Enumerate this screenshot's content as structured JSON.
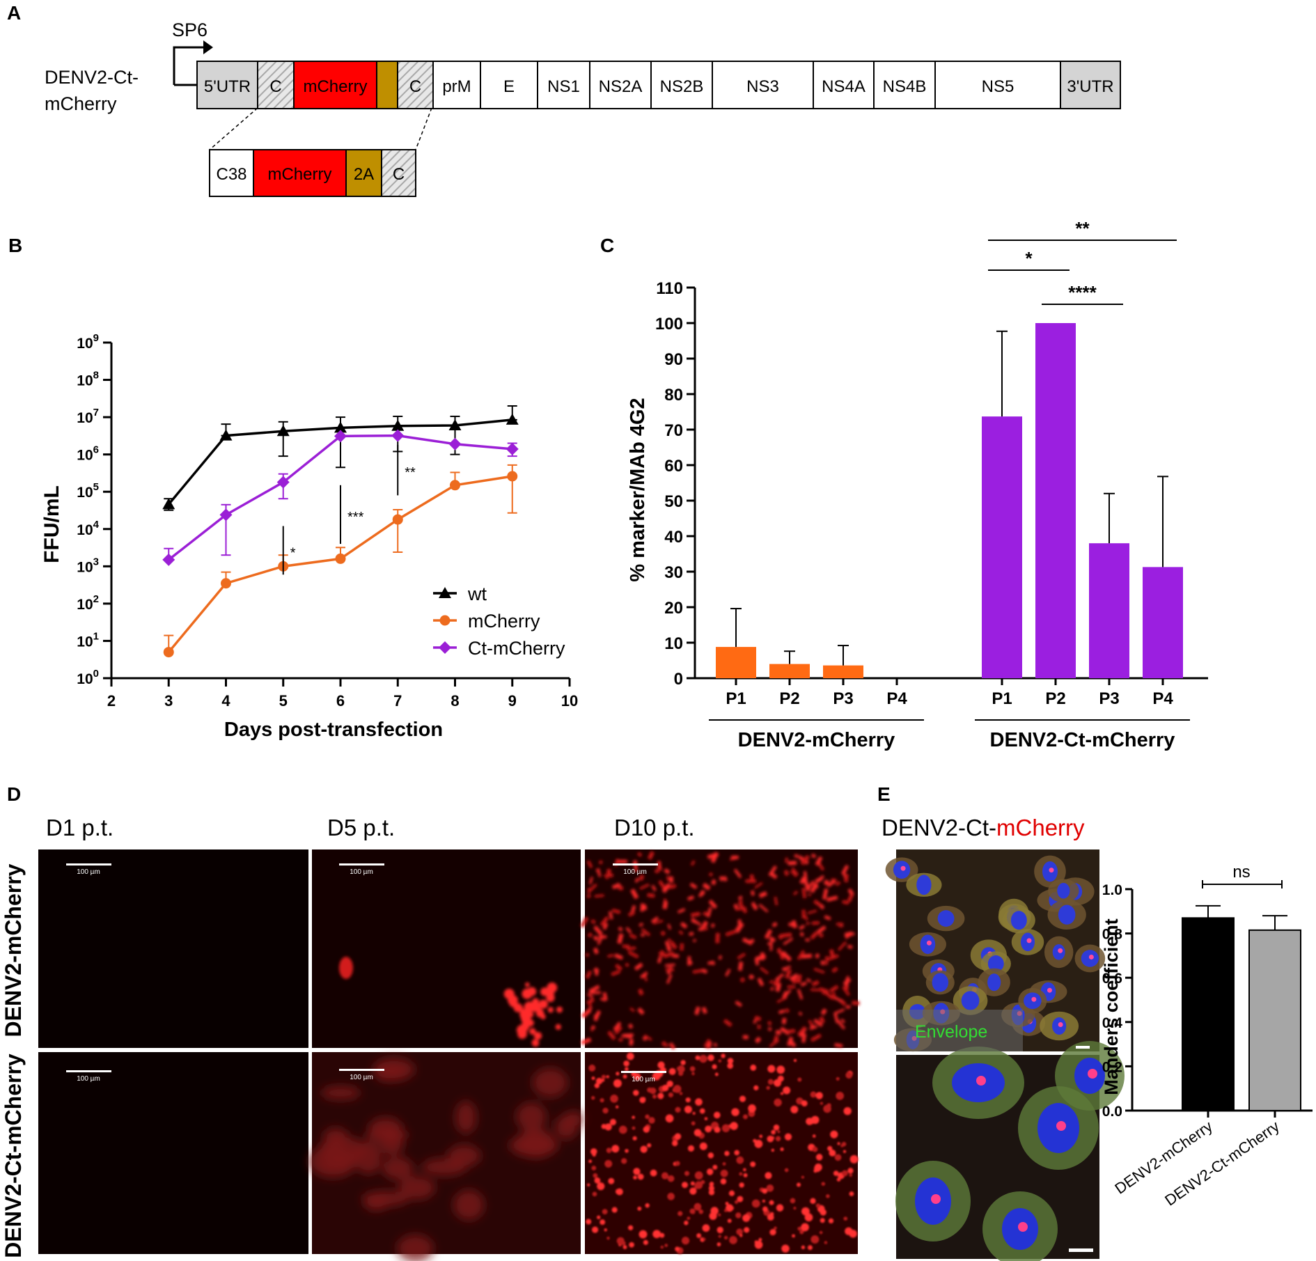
{
  "panels": {
    "A": {
      "letter": "A",
      "promoter": "SP6",
      "construct_line1": "DENV2-Ct-",
      "construct_line2": "mCherry",
      "genome_segments": [
        {
          "label": "5'UTR",
          "fill": "#d4d4d4"
        },
        {
          "label": "C",
          "fill": "hatch"
        },
        {
          "label": "mCherry",
          "fill": "#ff0000"
        },
        {
          "label": "",
          "fill": "#bf8f00"
        },
        {
          "label": "C",
          "fill": "hatch"
        },
        {
          "label": "prM",
          "fill": "#ffffff"
        },
        {
          "label": "E",
          "fill": "#ffffff"
        },
        {
          "label": "NS1",
          "fill": "#ffffff"
        },
        {
          "label": "NS2A",
          "fill": "#ffffff"
        },
        {
          "label": "NS2B",
          "fill": "#ffffff"
        },
        {
          "label": "NS3",
          "fill": "#ffffff"
        },
        {
          "label": "NS4A",
          "fill": "#ffffff"
        },
        {
          "label": "NS4B",
          "fill": "#ffffff"
        },
        {
          "label": "NS5",
          "fill": "#ffffff"
        },
        {
          "label": "3'UTR",
          "fill": "#d4d4d4"
        }
      ],
      "inset_segments": [
        {
          "label": "C38",
          "fill": "#ffffff"
        },
        {
          "label": "mCherry",
          "fill": "#ff0000"
        },
        {
          "label": "2A",
          "fill": "#bf8f00"
        },
        {
          "label": "C",
          "fill": "hatch"
        }
      ]
    },
    "B": {
      "letter": "B",
      "chart_data": {
        "type": "line",
        "xlabel": "Days post-transfection",
        "ylabel": "FFU/mL",
        "xlim": [
          2,
          10
        ],
        "x_ticks": [
          2,
          3,
          4,
          5,
          6,
          7,
          8,
          9,
          10
        ],
        "y_scale": "log",
        "ylim": [
          1,
          1000000000
        ],
        "y_ticks": [
          {
            "base": "10",
            "exp": "0"
          },
          {
            "base": "10",
            "exp": "1"
          },
          {
            "base": "10",
            "exp": "2"
          },
          {
            "base": "10",
            "exp": "3"
          },
          {
            "base": "10",
            "exp": "4"
          },
          {
            "base": "10",
            "exp": "5"
          },
          {
            "base": "10",
            "exp": "6"
          },
          {
            "base": "10",
            "exp": "7"
          },
          {
            "base": "10",
            "exp": "8"
          },
          {
            "base": "10",
            "exp": "9"
          }
        ],
        "legend_position": "bottom-right",
        "series": [
          {
            "name": "wt",
            "color": "#000000",
            "marker": "triangle",
            "x": [
              3,
              4,
              5,
              6,
              7,
              8,
              9
            ],
            "y": [
              46000,
              3200000,
              4200000,
              5200000,
              5800000,
              6000000,
              8500000
            ],
            "err_high": [
              65000,
              6500000,
              7500000,
              10000000,
              10500000,
              10500000,
              20000000
            ],
            "err_low": [
              32000,
              3200000,
              900000,
              450000,
              1200000,
              1000000,
              8500000
            ]
          },
          {
            "name": "mCherry",
            "color": "#ed6b1e",
            "marker": "circle",
            "x": [
              3,
              4,
              5,
              6,
              7,
              8,
              9
            ],
            "y": [
              5,
              350,
              1000,
              1600,
              18000,
              150000,
              260000
            ],
            "err_high": [
              14,
              700,
              2000,
              3200,
              33000,
              330000,
              520000
            ],
            "err_low": [
              5,
              350,
              1000,
              1600,
              2400,
              150000,
              27000
            ]
          },
          {
            "name": "Ct-mCherry",
            "color": "#9b1fd6",
            "marker": "diamond",
            "x": [
              3,
              4,
              5,
              6,
              7,
              8,
              9
            ],
            "y": [
              1500,
              24000,
              180000,
              3100000,
              3200000,
              1900000,
              1400000
            ],
            "err_high": [
              3000,
              45000,
              300000,
              3100000,
              3200000,
              1900000,
              2000000
            ],
            "err_low": [
              1500,
              2000,
              65000,
              3100000,
              3200000,
              1900000,
              900000
            ]
          }
        ],
        "annotations": [
          {
            "x": 5,
            "y_low": 600,
            "y_high": 12000,
            "label": "*"
          },
          {
            "x": 6,
            "y_low": 4000,
            "y_high": 150000,
            "label": "***"
          },
          {
            "x": 7,
            "y_low": 80000,
            "y_high": 1800000,
            "label": "**"
          }
        ]
      }
    },
    "C": {
      "letter": "C",
      "chart_data": {
        "type": "bar",
        "ylabel": "% marker/MAb 4G2",
        "ylim": [
          0,
          110
        ],
        "y_ticks": [
          0,
          10,
          20,
          30,
          40,
          50,
          60,
          70,
          80,
          90,
          100,
          110
        ],
        "groups": [
          {
            "name": "DENV2-mCherry",
            "color": "#ff6a13",
            "categories": [
              "P1",
              "P2",
              "P3",
              "P4"
            ],
            "values": [
              8.8,
              4.0,
              3.6,
              0
            ],
            "errors": [
              10.8,
              3.6,
              5.6,
              0
            ]
          },
          {
            "name": "DENV2-Ct-mCherry",
            "color": "#9b1fe0",
            "categories": [
              "P1",
              "P2",
              "P3",
              "P4"
            ],
            "values": [
              73.7,
              100,
              38,
              31.3
            ],
            "errors": [
              24,
              0,
              14,
              25.5
            ]
          }
        ],
        "significance": [
          {
            "from": "P1",
            "to": "P4",
            "label": "**"
          },
          {
            "from": "P1",
            "to": "P2",
            "label": "*"
          },
          {
            "from": "P2",
            "to": "P3",
            "label": "****"
          }
        ]
      }
    },
    "D": {
      "letter": "D",
      "col_labels": [
        "D1 p.t.",
        "D5 p.t.",
        "D10 p.t."
      ],
      "row_labels": [
        "DENV2-mCherry",
        "DENV2-Ct-mCherry"
      ],
      "scale_label": "100 µm"
    },
    "E": {
      "letter": "E",
      "title_prefix": "DENV2-Ct-",
      "title_highlight": "mCherry",
      "envelope_label": "Envelope",
      "chart_data": {
        "type": "bar",
        "ylabel": "Manders coefficient",
        "ylim": [
          0,
          1.0
        ],
        "y_ticks": [
          "0.0",
          "0.2",
          "0.4",
          "0.6",
          "0.8",
          "1.0"
        ],
        "categories": [
          "DENV2-mCherry",
          "DENV2-Ct-mCherry"
        ],
        "values": [
          0.87,
          0.815
        ],
        "errors": [
          0.055,
          0.065
        ],
        "colors": [
          "#000000",
          "#a6a6a6"
        ],
        "significance": "ns"
      }
    }
  }
}
